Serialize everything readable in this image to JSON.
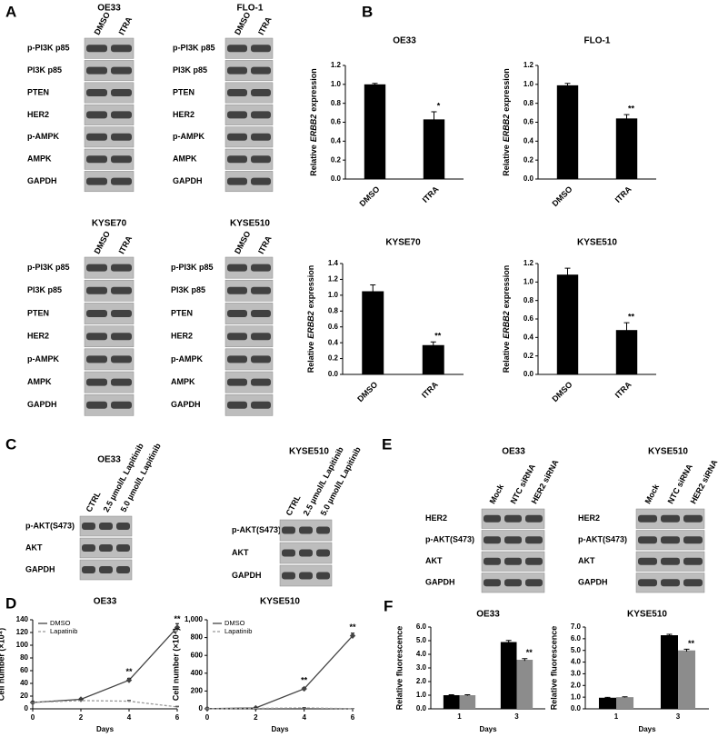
{
  "panel_labels": [
    "A",
    "B",
    "C",
    "D",
    "E",
    "F"
  ],
  "blots": [
    {
      "title": "OE33",
      "lanes": [
        "DMSO",
        "ITRA"
      ],
      "rows": [
        "p-PI3K p85",
        "PI3K p85",
        "PTEN",
        "HER2",
        "p-AMPK",
        "AMPK",
        "GAPDH"
      ]
    },
    {
      "title": "FLO-1",
      "lanes": [
        "DMSO",
        "ITRA"
      ],
      "rows": [
        "p-PI3K p85",
        "PI3K p85",
        "PTEN",
        "HER2",
        "p-AMPK",
        "AMPK",
        "GAPDH"
      ]
    },
    {
      "title": "KYSE70",
      "lanes": [
        "DMSO",
        "ITRA"
      ],
      "rows": [
        "p-PI3K p85",
        "PI3K p85",
        "PTEN",
        "HER2",
        "p-AMPK",
        "AMPK",
        "GAPDH"
      ]
    },
    {
      "title": "KYSE510",
      "lanes": [
        "DMSO",
        "ITRA"
      ],
      "rows": [
        "p-PI3K p85",
        "PI3K p85",
        "PTEN",
        "HER2",
        "p-AMPK",
        "AMPK",
        "GAPDH"
      ]
    },
    {
      "title": "OE33",
      "lanes": [
        "CTRL",
        "2.5 µmol/L Lapitinib",
        "5.0 µmol/L Lapitinib"
      ],
      "rows": [
        "p-AKT(S473)",
        "AKT",
        "GAPDH"
      ]
    },
    {
      "title": "KYSE510",
      "lanes": [
        "CTRL",
        "2.5 µmol/L Lapitinib",
        "5.0 µmol/L Lapitinib"
      ],
      "rows": [
        "p-AKT(S473)",
        "AKT",
        "GAPDH"
      ]
    },
    {
      "title": "OE33",
      "lanes": [
        "Mock",
        "NTC siRNA",
        "HER2 siRNA"
      ],
      "rows": [
        "HER2",
        "p-AKT(S473)",
        "AKT",
        "GAPDH"
      ]
    },
    {
      "title": "KYSE510",
      "lanes": [
        "Mock",
        "NTC siRNA",
        "HER2 siRNA"
      ],
      "rows": [
        "HER2",
        "p-AKT(S473)",
        "AKT",
        "GAPDH"
      ]
    }
  ],
  "chart_data": [
    {
      "type": "bar",
      "title": "OE33",
      "y_label": [
        "Relative",
        "ERBB2",
        "expression"
      ],
      "categories": [
        "DMSO",
        "ITRA"
      ],
      "values": [
        1.0,
        0.63
      ],
      "errors": [
        0.01,
        0.08
      ],
      "annotations": [
        null,
        "*"
      ],
      "color": "#000000",
      "ylim": [
        0,
        1.2
      ],
      "yticks": [
        {
          "value": 0,
          "label": "0.0"
        },
        0.2,
        0.4,
        0.6,
        0.8,
        {
          "value": 1,
          "label": "1.0"
        },
        1.2
      ]
    },
    {
      "type": "bar",
      "title": "FLO-1",
      "y_label": [
        "Relative",
        "ERBB2",
        "expression"
      ],
      "categories": [
        "DMSO",
        "ITRA"
      ],
      "values": [
        0.99,
        0.64
      ],
      "errors": [
        0.02,
        0.04
      ],
      "annotations": [
        null,
        "**"
      ],
      "color": "#000000",
      "ylim": [
        0,
        1.2
      ],
      "yticks": [
        {
          "value": 0,
          "label": "0.0"
        },
        0.2,
        0.4,
        0.6,
        0.8,
        {
          "value": 1,
          "label": "1.0"
        },
        1.2
      ]
    },
    {
      "type": "bar",
      "title": "KYSE70",
      "y_label": [
        "Relative",
        "ERBB2",
        "expression"
      ],
      "categories": [
        "DMSO",
        "ITRA"
      ],
      "values": [
        1.05,
        0.37
      ],
      "errors": [
        0.08,
        0.04
      ],
      "annotations": [
        null,
        "**"
      ],
      "color": "#000000",
      "ylim": [
        0,
        1.4
      ],
      "yticks": [
        {
          "value": 0,
          "label": "0.0"
        },
        0.2,
        0.4,
        0.6,
        0.8,
        {
          "value": 1,
          "label": "1.0"
        },
        1.2,
        1.4
      ]
    },
    {
      "type": "bar",
      "title": "KYSE510",
      "y_label": [
        "Relative",
        "ERBB2",
        "expression"
      ],
      "categories": [
        "DMSO",
        "ITRA"
      ],
      "values": [
        1.08,
        0.48
      ],
      "errors": [
        0.07,
        0.08
      ],
      "annotations": [
        null,
        "**"
      ],
      "color": "#000000",
      "ylim": [
        0,
        1.2
      ],
      "yticks": [
        {
          "value": 0,
          "label": "0.0"
        },
        0.2,
        0.4,
        0.6,
        0.8,
        {
          "value": 1,
          "label": "1.0"
        },
        1.2
      ]
    },
    {
      "type": "line",
      "title": "OE33",
      "y_label": "Cell number (×10⁴)",
      "x_label": "Days",
      "x": [
        0,
        2,
        4,
        6
      ],
      "series": [
        {
          "name": "DMSO",
          "color": "#444444",
          "values": [
            10,
            15,
            45,
            128
          ],
          "errors": [
            1,
            1,
            3,
            6
          ],
          "annotations": [
            null,
            null,
            "**",
            "**"
          ]
        },
        {
          "name": "Lapatinib",
          "color": "#999999",
          "values": [
            10,
            13,
            12,
            3
          ],
          "errors": [
            1,
            1,
            1,
            1
          ]
        }
      ],
      "xlim": [
        0,
        6
      ],
      "xticks": [
        0,
        2,
        4,
        6
      ],
      "ylim": [
        0,
        140
      ],
      "yticks": [
        0,
        20,
        40,
        60,
        80,
        100,
        120,
        140
      ],
      "legend": "top-left"
    },
    {
      "type": "line",
      "title": "KYSE510",
      "y_label": "Cell number (×10⁴)",
      "x_label": "Days",
      "x": [
        0,
        2,
        4,
        6
      ],
      "series": [
        {
          "name": "DMSO",
          "color": "#444444",
          "values": [
            2,
            10,
            225,
            820
          ],
          "errors": [
            2,
            5,
            15,
            30
          ],
          "annotations": [
            null,
            null,
            "**",
            "**"
          ]
        },
        {
          "name": "Lapatinib",
          "color": "#999999",
          "values": [
            2,
            5,
            10,
            2
          ],
          "errors": [
            2,
            3,
            5,
            2
          ]
        }
      ],
      "xlim": [
        0,
        6
      ],
      "xticks": [
        0,
        2,
        4,
        6
      ],
      "ylim": [
        0,
        1000
      ],
      "yticks": [
        0,
        200,
        400,
        600,
        800,
        {
          "value": 1000,
          "label": "1,000"
        }
      ],
      "legend": "top-left"
    },
    {
      "type": "bar",
      "title": "OE33",
      "y_label": "Relative fluorescence",
      "x_label": "Days",
      "categories": [
        "1",
        "3"
      ],
      "series": [
        {
          "color": "#000000",
          "values": [
            1.0,
            4.9
          ],
          "errors": [
            0.03,
            0.12
          ]
        },
        {
          "color": "#8c8c8c",
          "values": [
            1.0,
            3.6
          ],
          "errors": [
            0.03,
            0.08
          ],
          "annotations": [
            null,
            "**"
          ]
        }
      ],
      "ylim": [
        0,
        6
      ],
      "yticks": [
        {
          "value": 0,
          "label": "0.0"
        },
        {
          "value": 1,
          "label": "1.0"
        },
        {
          "value": 2,
          "label": "2.0"
        },
        {
          "value": 3,
          "label": "3.0"
        },
        {
          "value": 4,
          "label": "4.0"
        },
        {
          "value": 5,
          "label": "5.0"
        },
        {
          "value": 6,
          "label": "6.0"
        }
      ]
    },
    {
      "type": "bar",
      "title": "KYSE510",
      "y_label": "Relative fluorescence",
      "x_label": "Days",
      "categories": [
        "1",
        "3"
      ],
      "series": [
        {
          "color": "#000000",
          "values": [
            0.95,
            6.3
          ],
          "errors": [
            0.03,
            0.08
          ]
        },
        {
          "color": "#8c8c8c",
          "values": [
            1.0,
            5.0
          ],
          "errors": [
            0.03,
            0.1
          ],
          "annotations": [
            null,
            "**"
          ]
        }
      ],
      "ylim": [
        0,
        7
      ],
      "yticks": [
        {
          "value": 0,
          "label": "0.0"
        },
        {
          "value": 1,
          "label": "1.0"
        },
        {
          "value": 2,
          "label": "2.0"
        },
        {
          "value": 3,
          "label": "3.0"
        },
        {
          "value": 4,
          "label": "4.0"
        },
        {
          "value": 5,
          "label": "5.0"
        },
        {
          "value": 6,
          "label": "6.0"
        },
        {
          "value": 7,
          "label": "7.0"
        }
      ]
    }
  ]
}
